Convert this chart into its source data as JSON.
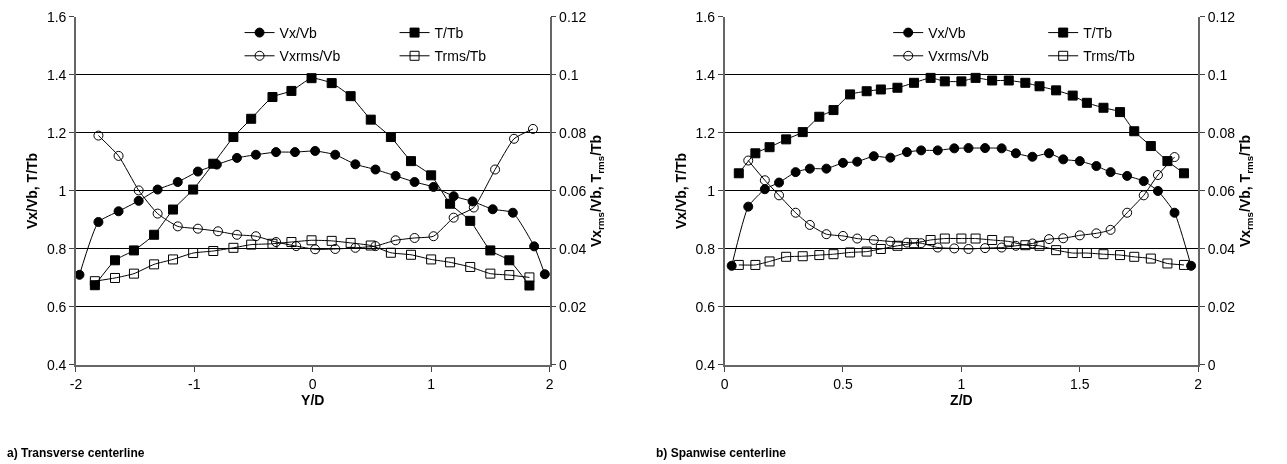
{
  "chart_data": [
    {
      "type": "line",
      "xlabel": "Y/D",
      "ylabel": "Vx/Vb, T/Tb",
      "y2label": "Vx$_{rms}$/Vb, T$_{rms}$/Tb",
      "annotations": [
        "a) Transverse centerline"
      ],
      "xlim": [
        -2,
        2
      ],
      "xticks": [
        -2,
        -1,
        0,
        1,
        2
      ],
      "ylim": [
        0.4,
        1.6
      ],
      "yticks": [
        0.4,
        0.6,
        0.8,
        1,
        1.2,
        1.4,
        1.6
      ],
      "y2lim": [
        0,
        0.12
      ],
      "y2ticks": [
        0,
        0.02,
        0.04,
        0.06,
        0.08,
        0.1,
        0.12
      ],
      "grid": "y",
      "legend": "top right",
      "series": [
        {
          "name": "Vx/Vb",
          "color": "#000000",
          "marker": "circle",
          "x": [
            -1.97,
            -1.81,
            -1.64,
            -1.47,
            -1.31,
            -1.14,
            -0.97,
            -0.81,
            -0.64,
            -0.48,
            -0.31,
            -0.15,
            0.02,
            0.19,
            0.36,
            0.53,
            0.7,
            0.86,
            1.02,
            1.19,
            1.35,
            1.52,
            1.69,
            1.87,
            1.96
          ],
          "values": [
            0.711,
            0.893,
            0.93,
            0.966,
            1.005,
            1.031,
            1.067,
            1.091,
            1.114,
            1.125,
            1.134,
            1.134,
            1.138,
            1.125,
            1.092,
            1.074,
            1.052,
            1.031,
            1.014,
            0.982,
            0.964,
            0.937,
            0.925,
            0.809,
            0.713
          ]
        },
        {
          "name": "T/Tb",
          "color": "#000000",
          "marker": "square",
          "x": [
            -1.84,
            -1.67,
            -1.51,
            -1.34,
            -1.18,
            -1.01,
            -0.84,
            -0.67,
            -0.52,
            -0.34,
            -0.18,
            -0.01,
            0.16,
            0.32,
            0.49,
            0.66,
            0.83,
            1.0,
            1.16,
            1.33,
            1.5,
            1.66,
            1.83
          ],
          "values": [
            0.675,
            0.761,
            0.795,
            0.849,
            0.936,
            1.005,
            1.094,
            1.186,
            1.249,
            1.324,
            1.345,
            1.389,
            1.372,
            1.327,
            1.246,
            1.186,
            1.103,
            1.054,
            0.956,
            0.897,
            0.795,
            0.761,
            0.674
          ]
        },
        {
          "name": "Vxrms/Vb",
          "color": "#000000",
          "marker": "circle",
          "axis": "y2",
          "x": [
            -1.81,
            -1.64,
            -1.47,
            -1.31,
            -1.14,
            -0.97,
            -0.8,
            -0.64,
            -0.48,
            -0.31,
            -0.14,
            0.02,
            0.19,
            0.36,
            0.53,
            0.7,
            0.86,
            1.02,
            1.19,
            1.36,
            1.54,
            1.7,
            1.86
          ],
          "values": [
            0.0791,
            0.0721,
            0.0602,
            0.0522,
            0.0478,
            0.047,
            0.0461,
            0.0449,
            0.0444,
            0.0424,
            0.041,
            0.0399,
            0.04,
            0.0404,
            0.041,
            0.043,
            0.0438,
            0.0444,
            0.0508,
            0.0543,
            0.0674,
            0.078,
            0.0814
          ]
        },
        {
          "name": "Trms/Tb",
          "color": "#000000",
          "marker": "square",
          "axis": "y2",
          "x": [
            -1.84,
            -1.67,
            -1.51,
            -1.34,
            -1.18,
            -1.01,
            -0.84,
            -0.67,
            -0.52,
            -0.34,
            -0.18,
            -0.01,
            0.16,
            0.32,
            0.49,
            0.66,
            0.83,
            1.0,
            1.16,
            1.33,
            1.5,
            1.66,
            1.83
          ],
          "values": [
            0.0289,
            0.03,
            0.0315,
            0.0347,
            0.0364,
            0.0386,
            0.0393,
            0.0404,
            0.0415,
            0.0418,
            0.0424,
            0.043,
            0.0428,
            0.0421,
            0.0412,
            0.0387,
            0.038,
            0.0364,
            0.0354,
            0.0338,
            0.0315,
            0.031,
            0.0302
          ]
        }
      ]
    },
    {
      "type": "line",
      "xlabel": "Z/D",
      "ylabel": "Vx/Vb, T/Tb",
      "y2label": "Vx$_{rms}$/Vb, T$_{rms}$/Tb",
      "annotations": [
        "b) Spanwise centerline"
      ],
      "xlim": [
        0,
        2
      ],
      "xticks": [
        0,
        0.5,
        1,
        1.5,
        2
      ],
      "ylim": [
        0.4,
        1.6
      ],
      "yticks": [
        0.4,
        0.6,
        0.8,
        1,
        1.2,
        1.4,
        1.6
      ],
      "y2lim": [
        0,
        0.12
      ],
      "y2ticks": [
        0,
        0.02,
        0.04,
        0.06,
        0.08,
        0.1,
        0.12
      ],
      "grid": "y",
      "legend": "top right",
      "series": [
        {
          "name": "Vx/Vb",
          "color": "#000000",
          "marker": "circle",
          "x": [
            0.03,
            0.1,
            0.17,
            0.23,
            0.3,
            0.36,
            0.43,
            0.5,
            0.56,
            0.63,
            0.7,
            0.77,
            0.83,
            0.9,
            0.97,
            1.03,
            1.1,
            1.17,
            1.23,
            1.3,
            1.37,
            1.43,
            1.5,
            1.57,
            1.63,
            1.7,
            1.77,
            1.83,
            1.9,
            1.97
          ],
          "values": [
            0.742,
            0.946,
            1.006,
            1.029,
            1.065,
            1.077,
            1.077,
            1.097,
            1.101,
            1.12,
            1.115,
            1.134,
            1.14,
            1.14,
            1.147,
            1.148,
            1.148,
            1.147,
            1.13,
            1.118,
            1.13,
            1.109,
            1.103,
            1.086,
            1.065,
            1.052,
            1.034,
            1.0,
            0.925,
            0.742
          ]
        },
        {
          "name": "T/Tb",
          "color": "#000000",
          "marker": "square",
          "x": [
            0.06,
            0.13,
            0.19,
            0.26,
            0.33,
            0.4,
            0.46,
            0.53,
            0.6,
            0.66,
            0.73,
            0.8,
            0.87,
            0.93,
            1.0,
            1.06,
            1.13,
            1.2,
            1.27,
            1.33,
            1.4,
            1.47,
            1.53,
            1.6,
            1.67,
            1.73,
            1.8,
            1.87,
            1.94
          ],
          "values": [
            1.061,
            1.13,
            1.151,
            1.178,
            1.203,
            1.256,
            1.279,
            1.333,
            1.344,
            1.35,
            1.356,
            1.373,
            1.39,
            1.378,
            1.378,
            1.39,
            1.381,
            1.381,
            1.373,
            1.361,
            1.347,
            1.329,
            1.304,
            1.287,
            1.272,
            1.206,
            1.155,
            1.103,
            1.061
          ]
        },
        {
          "name": "Vxrms/Vb",
          "color": "#000000",
          "marker": "circle",
          "axis": "y2",
          "x": [
            0.1,
            0.17,
            0.23,
            0.3,
            0.36,
            0.43,
            0.5,
            0.56,
            0.63,
            0.7,
            0.77,
            0.83,
            0.9,
            0.97,
            1.03,
            1.1,
            1.17,
            1.23,
            1.3,
            1.37,
            1.43,
            1.5,
            1.57,
            1.63,
            1.7,
            1.77,
            1.83,
            1.9
          ],
          "values": [
            0.0705,
            0.0637,
            0.0585,
            0.0525,
            0.0483,
            0.0451,
            0.0445,
            0.0436,
            0.0431,
            0.0426,
            0.0422,
            0.042,
            0.0405,
            0.0402,
            0.04,
            0.0403,
            0.0405,
            0.0411,
            0.0419,
            0.0434,
            0.0437,
            0.0447,
            0.0454,
            0.0466,
            0.0525,
            0.0585,
            0.0655,
            0.0717
          ]
        },
        {
          "name": "Trms/Tb",
          "color": "#000000",
          "marker": "square",
          "axis": "y2",
          "x": [
            0.06,
            0.13,
            0.19,
            0.26,
            0.33,
            0.4,
            0.46,
            0.53,
            0.6,
            0.66,
            0.73,
            0.8,
            0.87,
            0.93,
            1.0,
            1.06,
            1.13,
            1.2,
            1.27,
            1.33,
            1.4,
            1.47,
            1.53,
            1.6,
            1.67,
            1.73,
            1.8,
            1.87,
            1.94
          ],
          "values": [
            0.0345,
            0.0345,
            0.0357,
            0.0373,
            0.0375,
            0.0379,
            0.0382,
            0.0388,
            0.0391,
            0.04,
            0.0411,
            0.042,
            0.0431,
            0.0436,
            0.0436,
            0.0436,
            0.0431,
            0.0426,
            0.0413,
            0.0411,
            0.0396,
            0.0386,
            0.0386,
            0.0382,
            0.0379,
            0.0373,
            0.0367,
            0.035,
            0.0345
          ]
        }
      ]
    }
  ]
}
